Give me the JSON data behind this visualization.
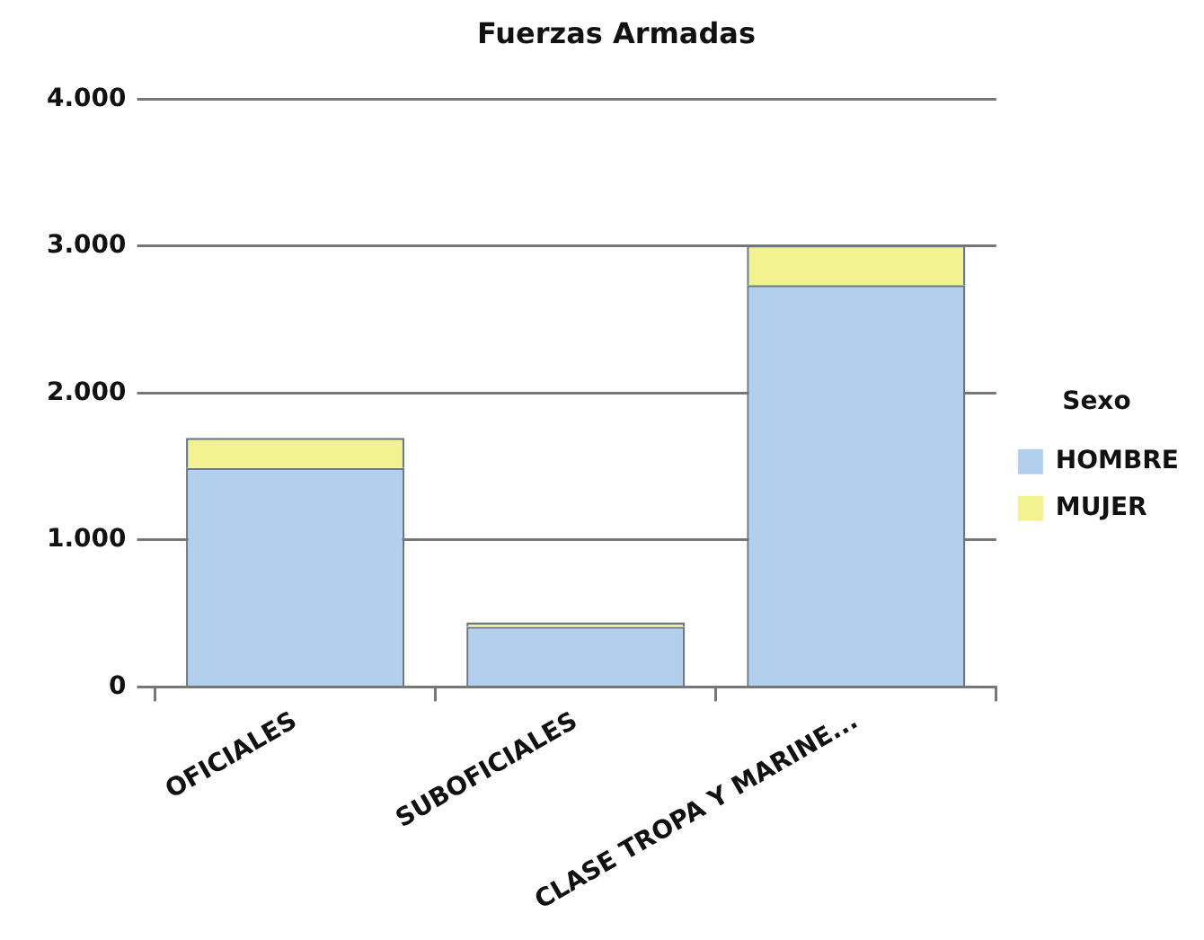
{
  "chart_data": {
    "type": "bar",
    "title": "Fuerzas Armadas",
    "legend_title": "Sexo",
    "categories": [
      "OFICIALES",
      "SUBOFICIALES",
      "CLASE TROPA Y MARINE..."
    ],
    "series": [
      {
        "name": "HOMBRE",
        "color": "#b3cfee",
        "values": [
          1490,
          410,
          2735
        ]
      },
      {
        "name": "MUJER",
        "color": "#f3f291",
        "values": [
          205,
          30,
          270
        ]
      }
    ],
    "stacked": true,
    "ylim": [
      0,
      4000
    ],
    "yticks": [
      {
        "value": 0,
        "label": "0"
      },
      {
        "value": 1000,
        "label": "1.000"
      },
      {
        "value": 2000,
        "label": "2.000"
      },
      {
        "value": 3000,
        "label": "3.000"
      },
      {
        "value": 4000,
        "label": "4.000"
      }
    ],
    "grid": "y",
    "legend": "right"
  }
}
